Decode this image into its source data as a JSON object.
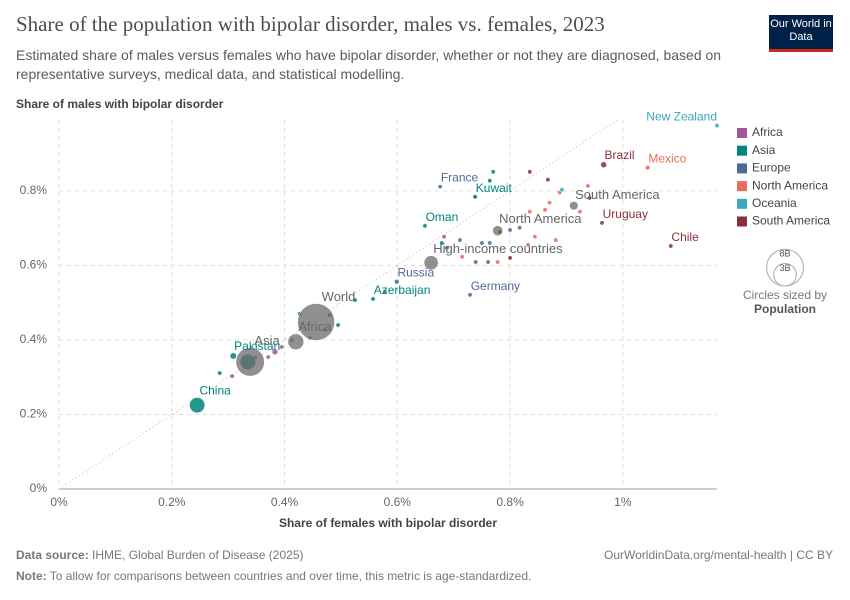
{
  "chart_data": {
    "type": "scatter",
    "title": "Share of the population with bipolar disorder, males vs. females, 2023",
    "subtitle": "Estimated share of males versus females who have bipolar disorder, whether or not they are diagnosed, based on representative surveys, medical data, and statistical modelling.",
    "y_label": "Share of males with bipolar disorder",
    "x_label": "Share of females with bipolar disorder",
    "logo": "Our World in Data",
    "xlim": [
      0,
      1.167
    ],
    "ylim": [
      0,
      0.99
    ],
    "xticks": [
      {
        "value": 0,
        "label": "0%"
      },
      {
        "value": 0.2,
        "label": "0.2%"
      },
      {
        "value": 0.4,
        "label": "0.4%"
      },
      {
        "value": 0.6,
        "label": "0.6%"
      },
      {
        "value": 0.8,
        "label": "0.8%"
      },
      {
        "value": 1,
        "label": "1%"
      }
    ],
    "yticks": [
      {
        "value": 0,
        "label": "0%"
      },
      {
        "value": 0.2,
        "label": "0.2%"
      },
      {
        "value": 0.4,
        "label": "0.4%"
      },
      {
        "value": 0.6,
        "label": "0.6%"
      },
      {
        "value": 0.8,
        "label": "0.8%"
      }
    ],
    "grid": true,
    "diagonal": true,
    "legend_position": "right",
    "series": [
      {
        "name": "Africa",
        "color": "#a2559c",
        "x": [
          0.383,
          0.395,
          0.348,
          0.307,
          0.445,
          0.472,
          0.371,
          0.683
        ],
        "y": [
          0.368,
          0.381,
          0.352,
          0.303,
          0.405,
          0.427,
          0.354,
          0.677
        ],
        "sizes": [
          0.2,
          0.1,
          0.05,
          0.03,
          0.06,
          0.04,
          0.1,
          0.01
        ],
        "labels": [
          null,
          null,
          null,
          null,
          null,
          null,
          null,
          null
        ]
      },
      {
        "name": "Asia",
        "color": "#00847e",
        "x": [
          0.738,
          0.649,
          0.557,
          0.309,
          0.245,
          0.738,
          0.77,
          0.764,
          0.48,
          0.495,
          0.285,
          0.427,
          0.679,
          0.525,
          0.335
        ],
        "y": [
          0.784,
          0.706,
          0.51,
          0.357,
          0.225,
          0.784,
          0.851,
          0.827,
          0.467,
          0.44,
          0.311,
          0.47,
          0.66,
          0.507,
          0.341
        ],
        "sizes": [
          0.005,
          0.005,
          0.01,
          0.24,
          1.41,
          0.01,
          0.01,
          0.01,
          0.03,
          0.02,
          0.05,
          0.1,
          0.01,
          0.03,
          1.44
        ],
        "labels": [
          "Kuwait",
          "Oman",
          "Azerbaijan",
          "Pakistan",
          "China",
          null,
          null,
          null,
          null,
          null,
          null,
          null,
          null,
          null,
          null
        ]
      },
      {
        "name": "Europe",
        "color": "#4c6a9c",
        "x": [
          0.676,
          0.599,
          0.729,
          0.764,
          0.8,
          0.75,
          0.817,
          0.688,
          0.711,
          0.761,
          0.739,
          0.578
        ],
        "y": [
          0.811,
          0.556,
          0.521,
          0.66,
          0.695,
          0.66,
          0.701,
          0.647,
          0.668,
          0.609,
          0.609,
          0.529
        ],
        "sizes": [
          0.07,
          0.14,
          0.08,
          0.01,
          0.01,
          0.02,
          0.01,
          0.01,
          0.01,
          0.01,
          0.005,
          0.04
        ],
        "labels": [
          "France",
          "Russia",
          "Germany",
          null,
          null,
          null,
          null,
          null,
          null,
          null,
          null,
          null
        ]
      },
      {
        "name": "North America",
        "color": "#e56e5a",
        "x": [
          1.044,
          0.938,
          0.888,
          0.862,
          0.87,
          0.924,
          0.844,
          0.881,
          0.832,
          0.778,
          0.715,
          0.835
        ],
        "y": [
          0.862,
          0.813,
          0.795,
          0.749,
          0.768,
          0.744,
          0.677,
          0.668,
          0.655,
          0.609,
          0.623,
          0.744
        ],
        "sizes": [
          0.13,
          0.01,
          0.01,
          0.005,
          0.01,
          0.01,
          0.005,
          0.005,
          0.01,
          0.005,
          0.005,
          0.005
        ],
        "labels": [
          "Mexico",
          null,
          null,
          null,
          null,
          null,
          null,
          null,
          null,
          null,
          null,
          null
        ]
      },
      {
        "name": "Oceania",
        "color": "#38aaba",
        "x": [
          1.167,
          0.892,
          0.413
        ],
        "y": [
          0.975,
          0.803,
          0.4
        ],
        "sizes": [
          0.005,
          0.026,
          0.01
        ],
        "labels": [
          "New Zealand",
          null,
          null
        ]
      },
      {
        "name": "South America",
        "color": "#883039",
        "x": [
          0.966,
          0.963,
          1.085,
          0.835,
          0.941,
          0.867,
          0.782,
          0.8
        ],
        "y": [
          0.87,
          0.714,
          0.652,
          0.851,
          0.781,
          0.83,
          0.69,
          0.62
        ],
        "sizes": [
          0.21,
          0.003,
          0.02,
          0.01,
          0.01,
          0.03,
          0.01,
          0.01
        ],
        "labels": [
          "Brazil",
          "Uruguay",
          "Chile",
          null,
          null,
          null,
          null,
          null
        ]
      }
    ],
    "aggregates": {
      "color": "#6b6b6b",
      "x": [
        0.913,
        0.778,
        0.66,
        0.456,
        0.42,
        0.339
      ],
      "y": [
        0.76,
        0.693,
        0.607,
        0.448,
        0.395,
        0.341
      ],
      "sizes": [
        0.44,
        0.6,
        1.2,
        8.1,
        1.5,
        4.8
      ],
      "labels": [
        "South America",
        "North America",
        "High-income countries",
        "World",
        "Africa",
        "Asia"
      ]
    },
    "size_legend": {
      "title": "Circles sized by",
      "variable": "Population",
      "sizes": [
        {
          "value": 8,
          "label": "8B"
        },
        {
          "value": 3,
          "label": "3B"
        }
      ]
    },
    "source_label": "Data source:",
    "source": "IHME, Global Burden of Disease (2025)",
    "url": "OurWorldinData.org/mental-health | CC BY",
    "note_label": "Note:",
    "note": "To allow for comparisons between countries and over time, this metric is age-standardized."
  }
}
